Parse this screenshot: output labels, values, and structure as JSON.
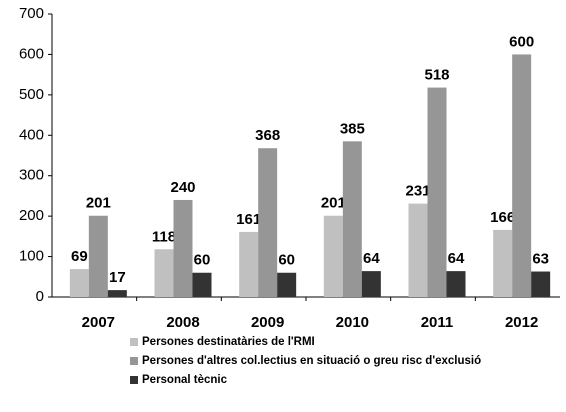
{
  "chart_data": {
    "type": "bar",
    "categories": [
      "2007",
      "2008",
      "2009",
      "2010",
      "2011",
      "2012"
    ],
    "series": [
      {
        "name": "Persones destinatàries de l'RMI",
        "color": "#c0c0c0",
        "values": [
          69,
          118,
          161,
          201,
          231,
          166
        ]
      },
      {
        "name": "Persones d'altres col.lectius en situació o greu risc d'exclusió",
        "color": "#969696",
        "values": [
          201,
          240,
          368,
          385,
          518,
          600
        ]
      },
      {
        "name": "Personal tècnic",
        "color": "#333333",
        "values": [
          17,
          60,
          60,
          64,
          64,
          63
        ]
      }
    ],
    "ylim": [
      0,
      700
    ],
    "yticks": [
      0,
      100,
      200,
      300,
      400,
      500,
      600,
      700
    ],
    "grid": false
  }
}
